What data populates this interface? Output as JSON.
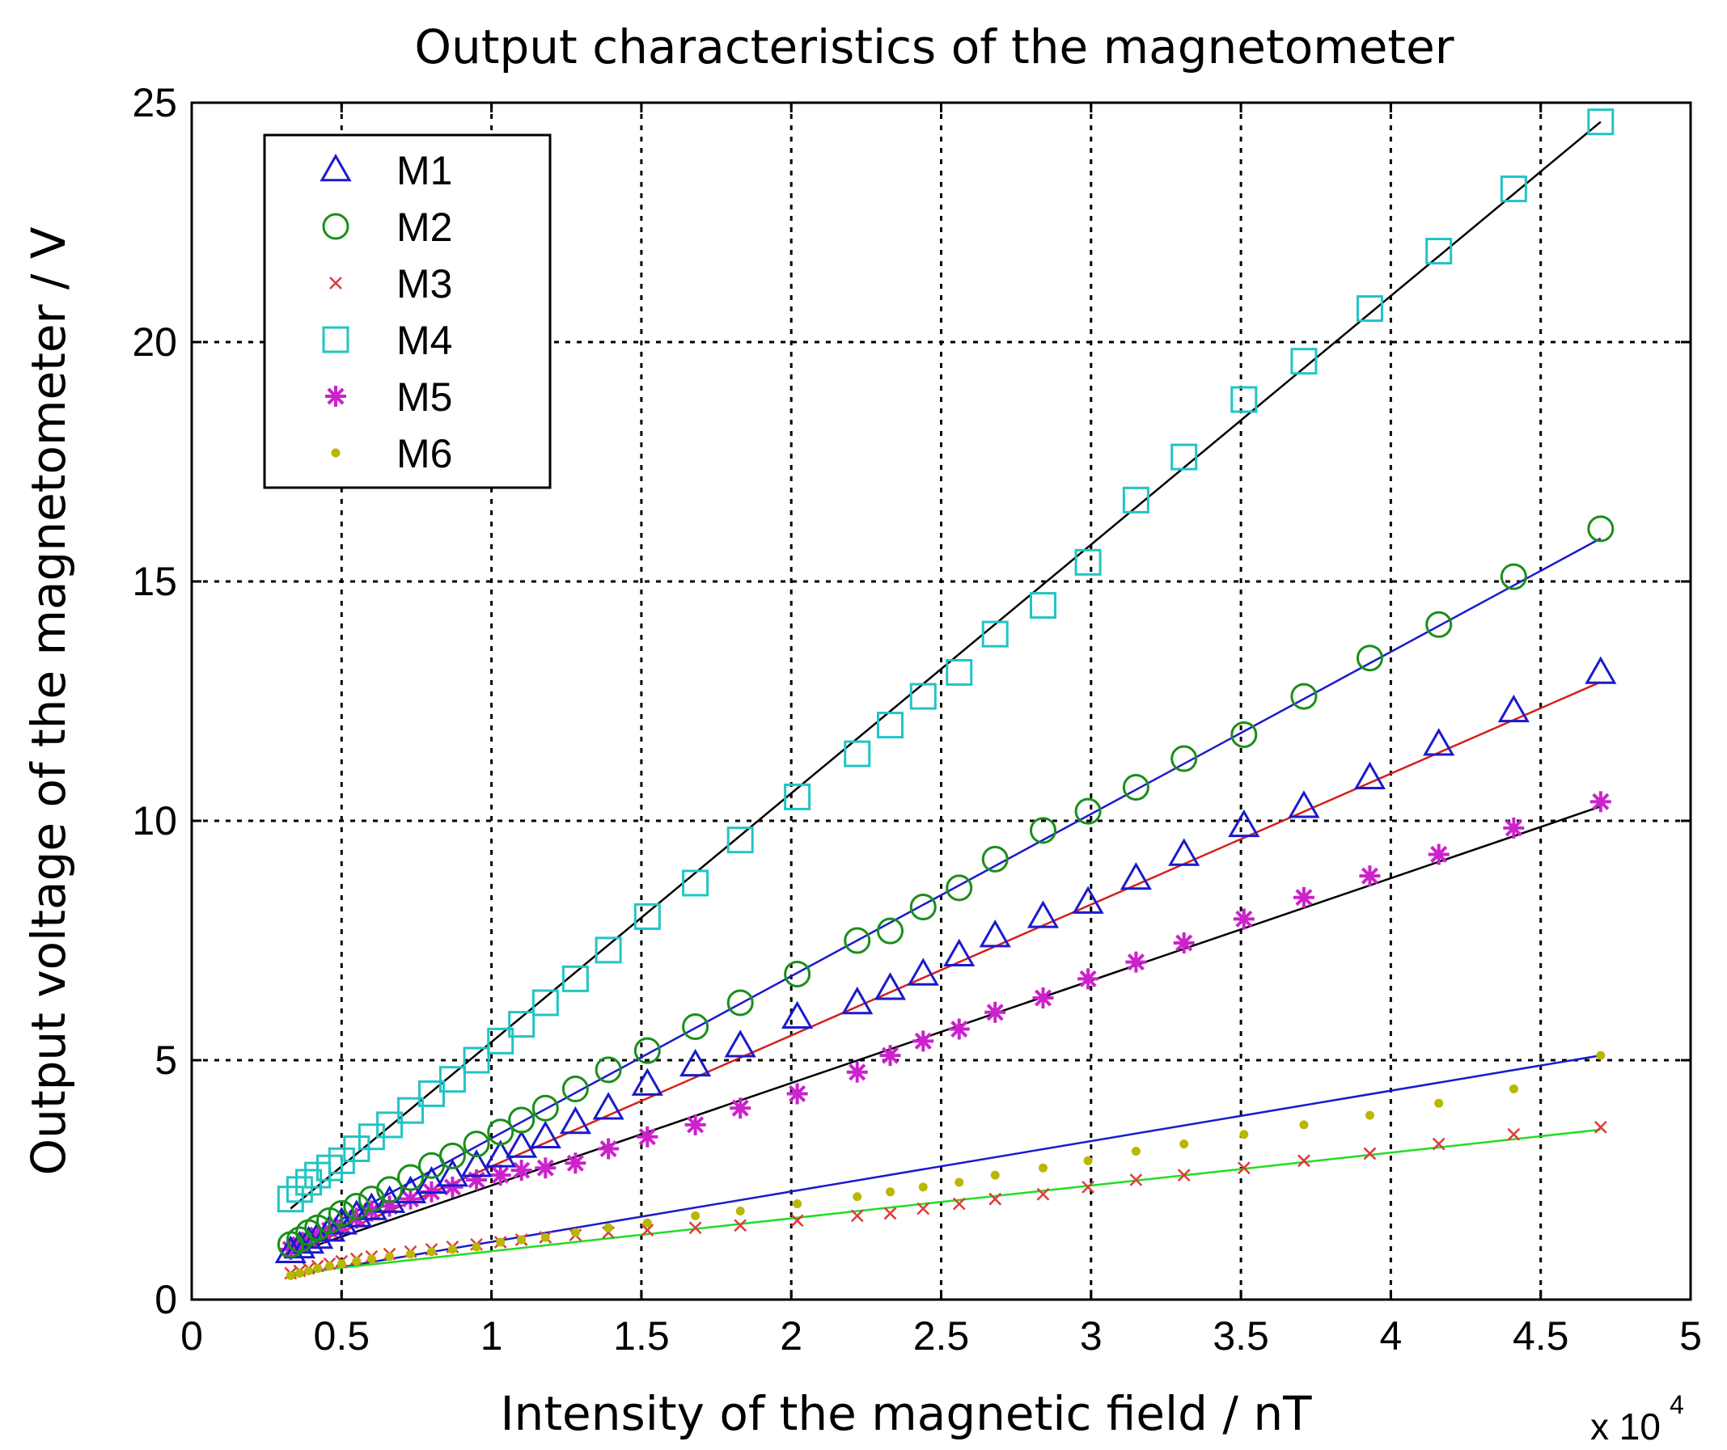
{
  "chart_data": {
    "type": "scatter",
    "title": "Output characteristics of the magnetometer",
    "xlabel": "Intensity of the magnetic field / nT",
    "ylabel": "Output voltage of the magnetometer / V",
    "x_multiplier": {
      "base": "x 10",
      "exponent": "4"
    },
    "xlim": [
      0,
      5
    ],
    "ylim": [
      0,
      25
    ],
    "xticks": [
      0,
      0.5,
      1,
      1.5,
      2,
      2.5,
      3,
      3.5,
      4,
      4.5,
      5
    ],
    "xtick_labels": [
      "0",
      "0.5",
      "1",
      "1.5",
      "2",
      "2.5",
      "3",
      "3.5",
      "4",
      "4.5",
      "5"
    ],
    "yticks": [
      0,
      5,
      10,
      15,
      20,
      25
    ],
    "ytick_labels": [
      "0",
      "5",
      "10",
      "15",
      "20",
      "25"
    ],
    "grid": true,
    "legend_position": "top-left",
    "x": [
      0.33,
      0.36,
      0.39,
      0.42,
      0.46,
      0.5,
      0.55,
      0.6,
      0.66,
      0.73,
      0.8,
      0.87,
      0.95,
      1.03,
      1.1,
      1.18,
      1.28,
      1.39,
      1.52,
      1.68,
      1.83,
      2.02,
      2.22,
      2.33,
      2.44,
      2.56,
      2.68,
      2.84,
      2.99,
      3.15,
      3.31,
      3.51,
      3.71,
      3.93,
      4.16,
      4.41,
      4.7
    ],
    "series": [
      {
        "name": "M1",
        "marker": "triangle",
        "color": "#1a1acc",
        "fit_color": "#d42020",
        "values": [
          1.0,
          1.1,
          1.2,
          1.3,
          1.45,
          1.6,
          1.75,
          1.9,
          2.05,
          2.25,
          2.45,
          2.6,
          2.8,
          3.0,
          3.2,
          3.4,
          3.7,
          4.0,
          4.5,
          4.9,
          5.3,
          5.9,
          6.2,
          6.5,
          6.8,
          7.2,
          7.6,
          8.0,
          8.3,
          8.8,
          9.3,
          9.9,
          10.3,
          10.9,
          11.6,
          12.3,
          13.1
        ]
      },
      {
        "name": "M2",
        "marker": "circle",
        "color": "#1a8f1a",
        "fit_color": "#1a1acc",
        "values": [
          1.15,
          1.25,
          1.4,
          1.5,
          1.65,
          1.8,
          1.95,
          2.1,
          2.3,
          2.55,
          2.8,
          3.0,
          3.25,
          3.5,
          3.75,
          4.0,
          4.4,
          4.8,
          5.2,
          5.7,
          6.2,
          6.8,
          7.5,
          7.7,
          8.2,
          8.6,
          9.2,
          9.8,
          10.2,
          10.7,
          11.3,
          11.8,
          12.6,
          13.4,
          14.1,
          15.1,
          16.1
        ]
      },
      {
        "name": "M3",
        "marker": "x",
        "color": "#e03a3a",
        "fit_color": "#22dd22",
        "values": [
          0.55,
          0.6,
          0.65,
          0.7,
          0.75,
          0.8,
          0.85,
          0.9,
          0.95,
          1.0,
          1.05,
          1.1,
          1.15,
          1.2,
          1.25,
          1.3,
          1.35,
          1.4,
          1.45,
          1.5,
          1.55,
          1.65,
          1.75,
          1.8,
          1.9,
          2.0,
          2.1,
          2.2,
          2.35,
          2.5,
          2.6,
          2.75,
          2.9,
          3.05,
          3.25,
          3.45,
          3.6
        ]
      },
      {
        "name": "M4",
        "marker": "square",
        "color": "#22c4c4",
        "fit_color": "#000000",
        "values": [
          2.1,
          2.3,
          2.45,
          2.6,
          2.75,
          2.9,
          3.15,
          3.4,
          3.65,
          3.95,
          4.3,
          4.6,
          5.0,
          5.4,
          5.75,
          6.2,
          6.7,
          7.3,
          8.0,
          8.7,
          9.6,
          10.5,
          11.4,
          12.0,
          12.6,
          13.1,
          13.9,
          14.5,
          15.4,
          16.7,
          17.6,
          18.8,
          19.6,
          20.7,
          21.9,
          23.2,
          24.6
        ]
      },
      {
        "name": "M5",
        "marker": "star",
        "color": "#cc22cc",
        "fit_color": "#000000",
        "values": [
          1.05,
          1.15,
          1.25,
          1.35,
          1.45,
          1.55,
          1.7,
          1.85,
          1.95,
          2.1,
          2.25,
          2.35,
          2.5,
          2.6,
          2.7,
          2.75,
          2.85,
          3.15,
          3.4,
          3.65,
          4.0,
          4.3,
          4.75,
          5.1,
          5.4,
          5.65,
          6.0,
          6.3,
          6.7,
          7.05,
          7.45,
          7.95,
          8.4,
          8.85,
          9.3,
          9.85,
          10.4
        ]
      },
      {
        "name": "M6",
        "marker": "dot",
        "color": "#b8b800",
        "fit_color": "#1a1acc",
        "values": [
          0.5,
          0.55,
          0.6,
          0.65,
          0.7,
          0.75,
          0.8,
          0.85,
          0.9,
          0.95,
          1.0,
          1.05,
          1.1,
          1.2,
          1.25,
          1.3,
          1.4,
          1.5,
          1.6,
          1.75,
          1.85,
          2.0,
          2.15,
          2.25,
          2.35,
          2.45,
          2.6,
          2.75,
          2.9,
          3.1,
          3.25,
          3.45,
          3.65,
          3.85,
          4.1,
          4.4,
          5.1
        ]
      }
    ],
    "fit_lines": [
      {
        "series": "M4",
        "color": "#000000",
        "x": [
          0.33,
          4.7
        ],
        "y": [
          1.9,
          24.6
        ]
      },
      {
        "series": "M2",
        "color": "#1a1acc",
        "x": [
          0.33,
          4.7
        ],
        "y": [
          1.1,
          15.9
        ]
      },
      {
        "series": "M1",
        "color": "#d42020",
        "x": [
          0.33,
          4.7
        ],
        "y": [
          0.95,
          12.9
        ]
      },
      {
        "series": "M5",
        "color": "#000000",
        "x": [
          0.33,
          4.7
        ],
        "y": [
          0.95,
          10.3
        ]
      },
      {
        "series": "M6",
        "color": "#1a1acc",
        "x": [
          0.33,
          4.7
        ],
        "y": [
          0.5,
          5.1
        ]
      },
      {
        "series": "M3",
        "color": "#22dd22",
        "x": [
          0.33,
          4.7
        ],
        "y": [
          0.55,
          3.55
        ]
      }
    ]
  }
}
